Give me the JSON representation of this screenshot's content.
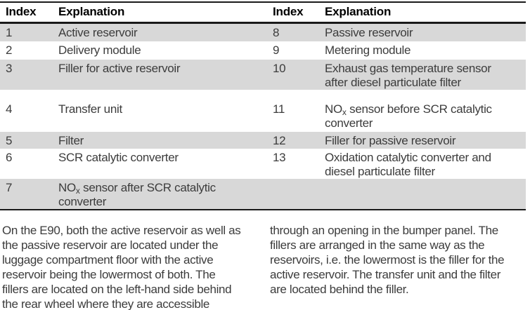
{
  "colors": {
    "row_shade": "#d8d8d8",
    "border": "#1a1a1a",
    "text": "#3c3c3c",
    "header_text": "#000000"
  },
  "table": {
    "header": {
      "index_left": "Index",
      "explanation_left": "Explanation",
      "index_right": "Index",
      "explanation_right": "Explanation"
    },
    "rows": [
      {
        "index_left": "1",
        "explanation_left": "Active reservoir",
        "index_right": "8",
        "explanation_right": "Passive reservoir"
      },
      {
        "index_left": "2",
        "explanation_left": "Delivery module",
        "index_right": "9",
        "explanation_right": "Metering module"
      },
      {
        "index_left": "3",
        "explanation_left": "Filler for active reservoir",
        "index_right": "10",
        "explanation_right": "Exhaust gas temperature sensor\nafter diesel particulate filter"
      },
      {
        "index_left": "4",
        "explanation_left": "Transfer unit",
        "index_right": "11",
        "explanation_right_pre": "NO",
        "explanation_right_sub": "x",
        "explanation_right_post": " sensor before SCR catalytic\nconverter"
      },
      {
        "index_left": "5",
        "explanation_left": "Filter",
        "index_right": "12",
        "explanation_right": "Filler for passive reservoir"
      },
      {
        "index_left": "6",
        "explanation_left": "SCR catalytic converter",
        "index_right": "13",
        "explanation_right": "Oxidation catalytic converter and\ndiesel particulate filter"
      },
      {
        "index_left": "7",
        "explanation_left_pre": "NO",
        "explanation_left_sub": "x",
        "explanation_left_post": " sensor after SCR catalytic\nconverter",
        "index_right": "",
        "explanation_right": ""
      }
    ]
  },
  "body_text": {
    "column_left": "On the E90, both the active reservoir as well as\nthe passive reservoir are located under the\nluggage compartment floor with the active\nreservoir being the lowermost of both. The\nfillers are located on the left-hand side behind\nthe rear wheel where they are accessible",
    "column_right": "through an opening in the bumper panel. The\nfillers are arranged in the same way as the\nreservoirs, i.e. the lowermost is the filler for the\nactive reservoir. The transfer unit and the filter\nare located behind the filler."
  }
}
